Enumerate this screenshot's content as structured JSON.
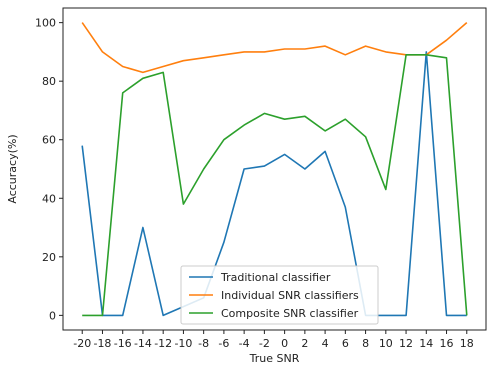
{
  "chart_data": {
    "type": "line",
    "x": [
      -20,
      -18,
      -16,
      -14,
      -12,
      -10,
      -8,
      -6,
      -4,
      -2,
      0,
      2,
      4,
      6,
      8,
      10,
      12,
      14,
      16,
      18
    ],
    "xticks": [
      "-20",
      "-18",
      "-16",
      "-14",
      "-12",
      "-10",
      "-8",
      "-6",
      "-4",
      "-2",
      "0",
      "2",
      "4",
      "6",
      "8",
      "10",
      "12",
      "14",
      "16",
      "18"
    ],
    "yticks": [
      "0",
      "20",
      "40",
      "60",
      "80",
      "100"
    ],
    "xlabel": "True SNR",
    "ylabel": "Accuracy(%)",
    "xlim": [
      -21.9,
      19.9
    ],
    "ylim": [
      -5,
      105
    ],
    "grid": false,
    "legend_position": "lower-center",
    "series": [
      {
        "name": "Traditional classifier",
        "color": "#1f77b4",
        "values": [
          58,
          0,
          0,
          30,
          0,
          3,
          6,
          25,
          50,
          51,
          55,
          50,
          56,
          37,
          0,
          0,
          0,
          90,
          0,
          0
        ]
      },
      {
        "name": "Individual SNR classifiers",
        "color": "#ff7f0e",
        "values": [
          100,
          90,
          85,
          83,
          85,
          87,
          88,
          89,
          90,
          90,
          91,
          91,
          92,
          89,
          92,
          90,
          89,
          89,
          94,
          100
        ]
      },
      {
        "name": "Composite SNR classifier",
        "color": "#2ca02c",
        "values": [
          0,
          0,
          76,
          81,
          83,
          38,
          50,
          60,
          65,
          69,
          67,
          68,
          63,
          67,
          61,
          43,
          89,
          89,
          88,
          0
        ]
      }
    ]
  }
}
